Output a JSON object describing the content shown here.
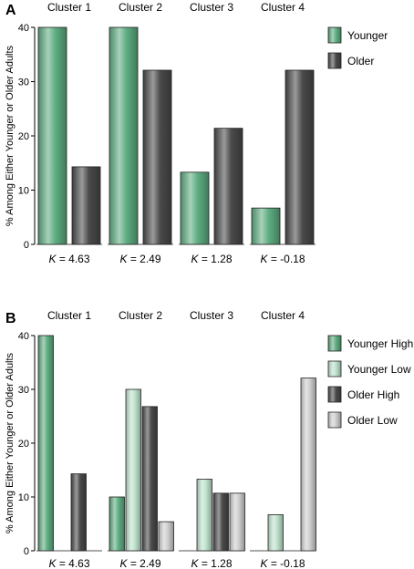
{
  "colors": {
    "younger": "#5fae82",
    "older": "#4a4a4a",
    "younger_high": "#5fae82",
    "younger_low": "#bfe3cd",
    "older_high": "#4a4a4a",
    "older_low": "#cfcfcf"
  },
  "chart_data": [
    {
      "panel": "A",
      "type": "bar",
      "categories": [
        "Cluster 1",
        "Cluster 2",
        "Cluster 3",
        "Cluster 4"
      ],
      "k_labels": [
        "4.63",
        "2.49",
        "1.28",
        "-0.18"
      ],
      "ylabel": "% Among Either Younger or Older Adults",
      "ylim": [
        0,
        40
      ],
      "yticks": [
        0,
        10,
        20,
        30,
        40
      ],
      "legend": "right",
      "series": [
        {
          "name": "Younger",
          "color_key": "younger",
          "values": [
            40,
            40,
            13.3,
            6.7
          ]
        },
        {
          "name": "Older",
          "color_key": "older",
          "values": [
            14.3,
            32.1,
            21.4,
            32.1
          ]
        }
      ]
    },
    {
      "panel": "B",
      "type": "bar",
      "categories": [
        "Cluster 1",
        "Cluster 2",
        "Cluster 3",
        "Cluster 4"
      ],
      "k_labels": [
        "4.63",
        "2.49",
        "1.28",
        "-0.18"
      ],
      "ylabel": "% Among Either Younger or Older Adults",
      "ylim": [
        0,
        40
      ],
      "yticks": [
        0,
        10,
        20,
        30,
        40
      ],
      "legend": "right",
      "series": [
        {
          "name": "Younger High",
          "color_key": "younger_high",
          "values": [
            40,
            10,
            0,
            0
          ]
        },
        {
          "name": "Younger Low",
          "color_key": "younger_low",
          "values": [
            0,
            30,
            13.3,
            6.7
          ]
        },
        {
          "name": "Older High",
          "color_key": "older_high",
          "values": [
            14.3,
            26.8,
            10.7,
            0
          ]
        },
        {
          "name": "Older Low",
          "color_key": "older_low",
          "values": [
            0,
            5.4,
            10.7,
            32.1
          ]
        }
      ]
    }
  ]
}
